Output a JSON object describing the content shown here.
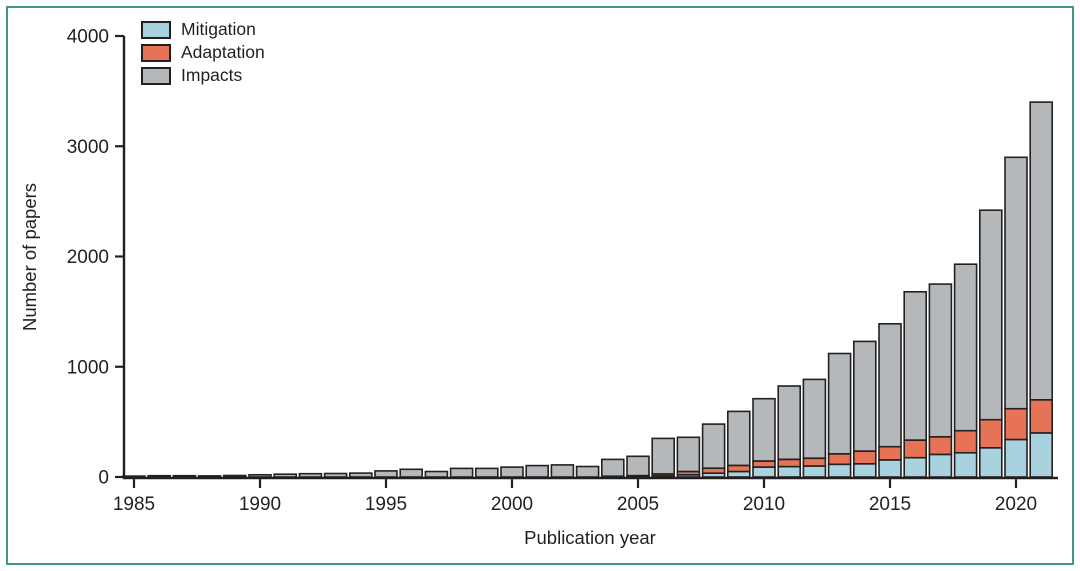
{
  "figure": {
    "border_color": "#43948a",
    "background": "#ffffff",
    "text_color": "#231f20",
    "outline_color": "#232020"
  },
  "chart_data": {
    "type": "bar",
    "stacked": true,
    "title": "",
    "xlabel": "Publication year",
    "ylabel": "Number of papers",
    "ylim": [
      0,
      4000
    ],
    "yticks": [
      0,
      1000,
      2000,
      3000,
      4000
    ],
    "xticks": [
      1985,
      1990,
      1995,
      2000,
      2005,
      2010,
      2015,
      2020
    ],
    "grid": false,
    "legend_position": "top-left",
    "categories": [
      1985,
      1986,
      1987,
      1988,
      1989,
      1990,
      1991,
      1992,
      1993,
      1994,
      1995,
      1996,
      1997,
      1998,
      1999,
      2000,
      2001,
      2002,
      2003,
      2004,
      2005,
      2006,
      2007,
      2008,
      2009,
      2010,
      2011,
      2012,
      2013,
      2014,
      2015,
      2016,
      2017,
      2018,
      2019,
      2020,
      2021
    ],
    "series": [
      {
        "name": "Mitigation",
        "color": "#a8d3de",
        "values": [
          0,
          0,
          0,
          0,
          0,
          0,
          0,
          0,
          0,
          0,
          0,
          0,
          0,
          0,
          0,
          0,
          0,
          0,
          0,
          3,
          5,
          10,
          20,
          35,
          50,
          90,
          95,
          100,
          115,
          120,
          155,
          175,
          205,
          220,
          265,
          340,
          400
        ]
      },
      {
        "name": "Adaptation",
        "color": "#e67355",
        "values": [
          0,
          0,
          0,
          0,
          0,
          0,
          0,
          0,
          0,
          0,
          0,
          0,
          0,
          0,
          0,
          0,
          0,
          0,
          0,
          5,
          8,
          18,
          30,
          45,
          55,
          55,
          65,
          70,
          95,
          115,
          120,
          160,
          160,
          200,
          255,
          280,
          300
        ]
      },
      {
        "name": "Impacts",
        "color": "#b5b8bb",
        "values": [
          8,
          12,
          12,
          10,
          14,
          20,
          25,
          30,
          32,
          35,
          55,
          70,
          50,
          78,
          78,
          90,
          103,
          110,
          95,
          152,
          175,
          322,
          310,
          400,
          490,
          565,
          665,
          715,
          910,
          995,
          1115,
          1345,
          1385,
          1510,
          1900,
          2280,
          2700
        ]
      }
    ]
  }
}
